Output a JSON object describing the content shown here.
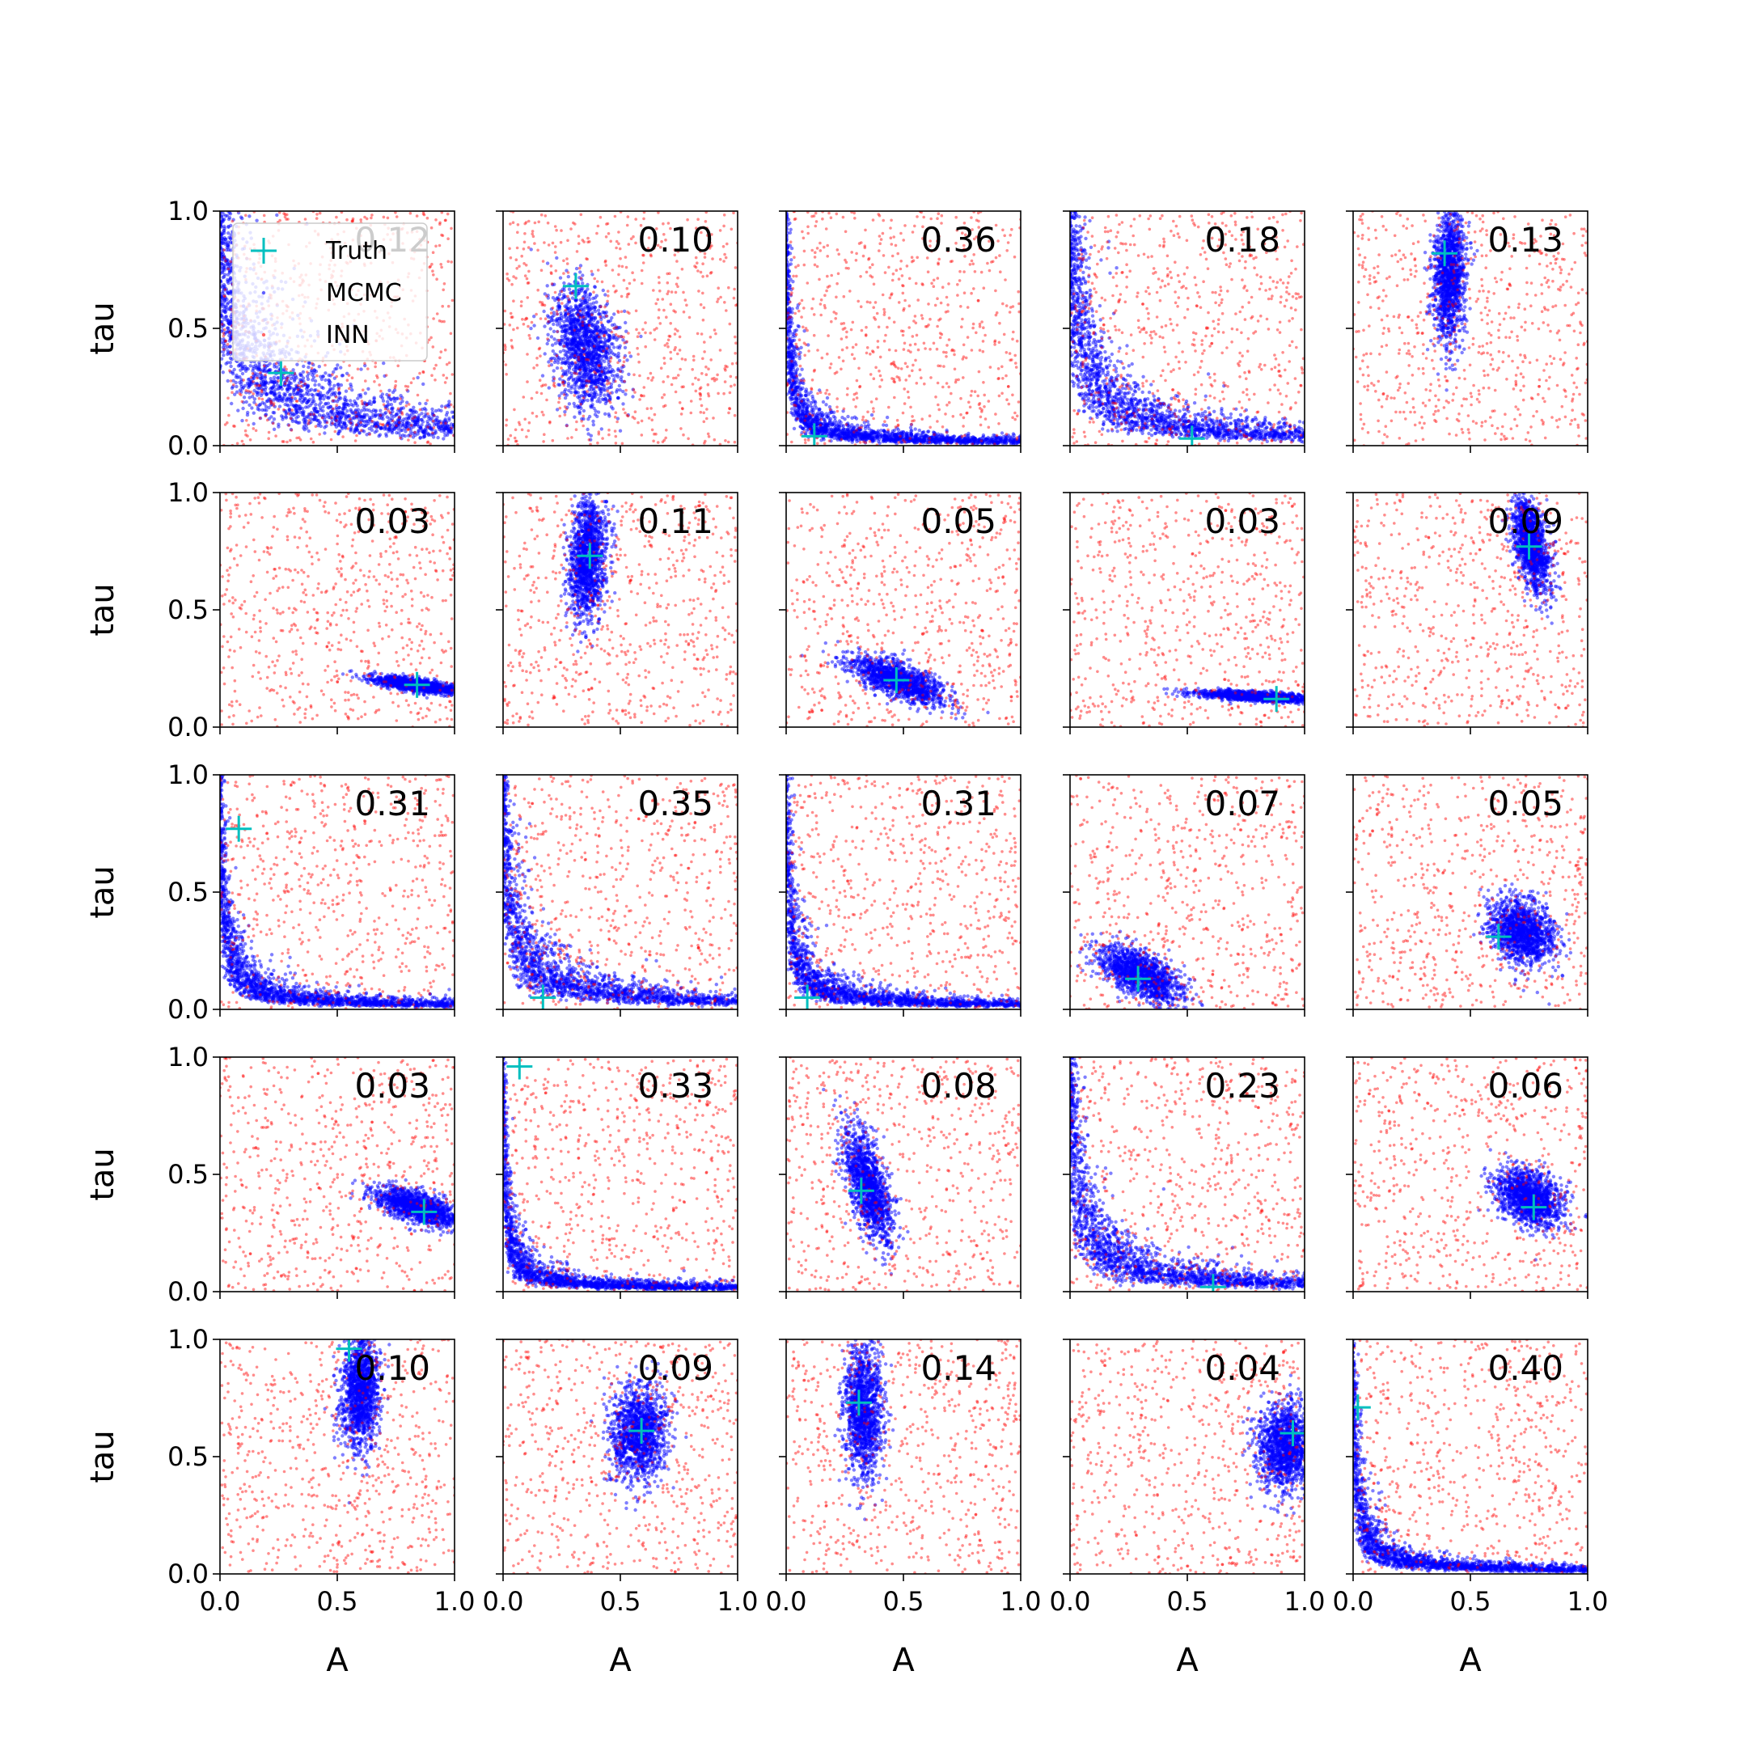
{
  "legend": {
    "entries": [
      {
        "label": "Truth",
        "color": "#00bfbf",
        "marker": "plus"
      },
      {
        "label": "MCMC",
        "color": "#0000ff",
        "marker": "dot"
      },
      {
        "label": "INN",
        "color": "#ff0000",
        "marker": "dot"
      }
    ],
    "placement": "upper-left of first panel"
  },
  "colors": {
    "mcmc": "#0000ff",
    "inn": "#ff0000",
    "truth": "#00bfbf"
  },
  "chart_data": {
    "type": "scatter",
    "layout": {
      "rows": 5,
      "cols": 5
    },
    "xlabel": "A",
    "ylabel": "tau",
    "xlim": [
      0,
      1
    ],
    "ylim": [
      0,
      1
    ],
    "xticks": [
      "0.0",
      "0.5",
      "1.0"
    ],
    "yticks": [
      "0.0",
      "0.5",
      "1.0"
    ],
    "grid": false,
    "series_names": [
      "Truth",
      "MCMC",
      "INN"
    ],
    "inn_distribution": "approximately uniform over [0,1]x[0,1]",
    "panels": [
      {
        "score": "0.12",
        "truth": [
          0.26,
          0.31
        ],
        "mcmc": {
          "shape": "hyperbola",
          "k": 0.08
        }
      },
      {
        "score": "0.10",
        "truth": [
          0.31,
          0.68
        ],
        "mcmc": {
          "shape": "blob",
          "c": [
            0.35,
            0.42
          ],
          "s": [
            0.07,
            0.13
          ],
          "rho": -0.3
        }
      },
      {
        "score": "0.36",
        "truth": [
          0.12,
          0.04
        ],
        "mcmc": {
          "shape": "hyperbola",
          "k": 0.012
        }
      },
      {
        "score": "0.18",
        "truth": [
          0.52,
          0.03
        ],
        "mcmc": {
          "shape": "hyperbola",
          "k": 0.04
        }
      },
      {
        "score": "0.13",
        "truth": [
          0.39,
          0.82
        ],
        "mcmc": {
          "shape": "blob",
          "c": [
            0.41,
            0.72
          ],
          "s": [
            0.035,
            0.14
          ],
          "rho": 0.1
        }
      },
      {
        "score": "0.03",
        "truth": [
          0.84,
          0.18
        ],
        "mcmc": {
          "shape": "blob",
          "c": [
            0.84,
            0.18
          ],
          "s": [
            0.09,
            0.018
          ],
          "rho": -0.7
        }
      },
      {
        "score": "0.11",
        "truth": [
          0.37,
          0.73
        ],
        "mcmc": {
          "shape": "blob",
          "c": [
            0.36,
            0.72
          ],
          "s": [
            0.04,
            0.13
          ],
          "rho": 0.2
        }
      },
      {
        "score": "0.05",
        "truth": [
          0.47,
          0.2
        ],
        "mcmc": {
          "shape": "blob",
          "c": [
            0.48,
            0.2
          ],
          "s": [
            0.1,
            0.05
          ],
          "rho": -0.7
        }
      },
      {
        "score": "0.03",
        "truth": [
          0.88,
          0.12
        ],
        "mcmc": {
          "shape": "blob",
          "c": [
            0.8,
            0.13
          ],
          "s": [
            0.13,
            0.012
          ],
          "rho": -0.6
        }
      },
      {
        "score": "0.09",
        "truth": [
          0.75,
          0.77
        ],
        "mcmc": {
          "shape": "blob",
          "c": [
            0.76,
            0.78
          ],
          "s": [
            0.04,
            0.1
          ],
          "rho": -0.5
        }
      },
      {
        "score": "0.31",
        "truth": [
          0.08,
          0.77
        ],
        "mcmc": {
          "shape": "hyperbola",
          "k": 0.015
        }
      },
      {
        "score": "0.35",
        "truth": [
          0.17,
          0.05
        ],
        "mcmc": {
          "shape": "hyperbola",
          "k": 0.03
        }
      },
      {
        "score": "0.31",
        "truth": [
          0.09,
          0.05
        ],
        "mcmc": {
          "shape": "hyperbola",
          "k": 0.015
        }
      },
      {
        "score": "0.07",
        "truth": [
          0.29,
          0.13
        ],
        "mcmc": {
          "shape": "blob",
          "c": [
            0.3,
            0.15
          ],
          "s": [
            0.09,
            0.06
          ],
          "rho": -0.6
        }
      },
      {
        "score": "0.05",
        "truth": [
          0.62,
          0.31
        ],
        "mcmc": {
          "shape": "blob",
          "c": [
            0.72,
            0.33
          ],
          "s": [
            0.07,
            0.07
          ],
          "rho": -0.3
        }
      },
      {
        "score": "0.03",
        "truth": [
          0.87,
          0.34
        ],
        "mcmc": {
          "shape": "blob",
          "c": [
            0.84,
            0.36
          ],
          "s": [
            0.09,
            0.04
          ],
          "rho": -0.6
        }
      },
      {
        "score": "0.33",
        "truth": [
          0.07,
          0.96
        ],
        "mcmc": {
          "shape": "hyperbola",
          "k": 0.01
        }
      },
      {
        "score": "0.08",
        "truth": [
          0.32,
          0.43
        ],
        "mcmc": {
          "shape": "blob",
          "c": [
            0.35,
            0.45
          ],
          "s": [
            0.05,
            0.12
          ],
          "rho": -0.6
        }
      },
      {
        "score": "0.23",
        "truth": [
          0.61,
          0.02
        ],
        "mcmc": {
          "shape": "hyperbola",
          "k": 0.03
        }
      },
      {
        "score": "0.06",
        "truth": [
          0.77,
          0.36
        ],
        "mcmc": {
          "shape": "blob",
          "c": [
            0.75,
            0.4
          ],
          "s": [
            0.07,
            0.06
          ],
          "rho": -0.3
        }
      },
      {
        "score": "0.10",
        "truth": [
          0.55,
          0.96
        ],
        "mcmc": {
          "shape": "blob",
          "c": [
            0.6,
            0.78
          ],
          "s": [
            0.04,
            0.12
          ],
          "rho": 0.1
        }
      },
      {
        "score": "0.09",
        "truth": [
          0.59,
          0.61
        ],
        "mcmc": {
          "shape": "blob",
          "c": [
            0.58,
            0.6
          ],
          "s": [
            0.06,
            0.1
          ],
          "rho": 0.1
        }
      },
      {
        "score": "0.14",
        "truth": [
          0.31,
          0.73
        ],
        "mcmc": {
          "shape": "blob",
          "c": [
            0.33,
            0.7
          ],
          "s": [
            0.04,
            0.14
          ],
          "rho": 0.0
        }
      },
      {
        "score": "0.04",
        "truth": [
          0.95,
          0.6
        ],
        "mcmc": {
          "shape": "blob",
          "c": [
            0.92,
            0.54
          ],
          "s": [
            0.06,
            0.09
          ],
          "rho": 0.0
        }
      },
      {
        "score": "0.40",
        "truth": [
          0.02,
          0.71
        ],
        "mcmc": {
          "shape": "hyperbola",
          "k": 0.012
        }
      }
    ]
  }
}
